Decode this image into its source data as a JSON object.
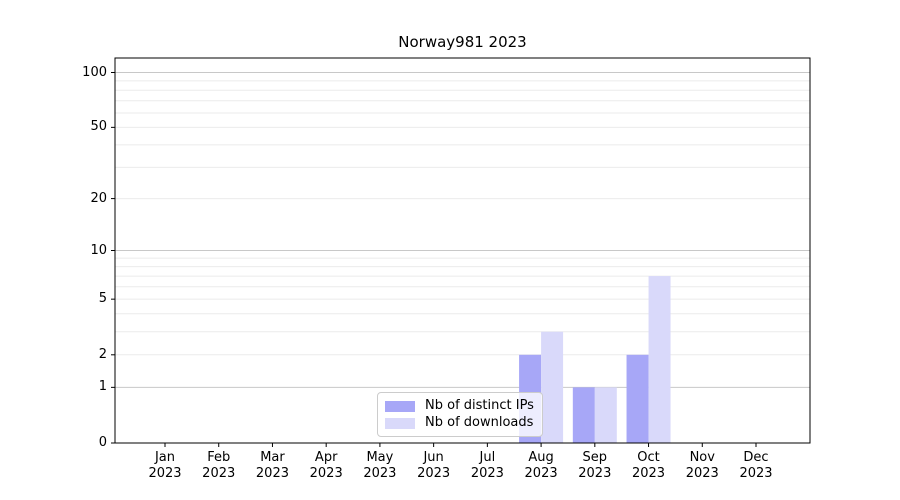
{
  "chart_data": {
    "type": "bar",
    "title": "Norway981 2023",
    "categories": [
      "Jan",
      "Feb",
      "Mar",
      "Apr",
      "May",
      "Jun",
      "Jul",
      "Aug",
      "Sep",
      "Oct",
      "Nov",
      "Dec"
    ],
    "year": "2023",
    "series": [
      {
        "name": "Nb of distinct IPs",
        "color": "#a7a7f7",
        "values": [
          0,
          0,
          0,
          0,
          0,
          0,
          0,
          2,
          1,
          2,
          0,
          0
        ]
      },
      {
        "name": "Nb of downloads",
        "color": "#d9d9fa",
        "values": [
          0,
          0,
          0,
          0,
          0,
          0,
          0,
          3,
          1,
          7,
          0,
          0
        ]
      }
    ],
    "xlabel": "",
    "ylabel": "",
    "yscale": "log1p",
    "ylim": [
      0,
      120
    ],
    "y_ticks": [
      0,
      1,
      2,
      5,
      10,
      20,
      50,
      100
    ],
    "grid": {
      "major": [
        1,
        10,
        100
      ],
      "minor": [
        2,
        3,
        4,
        5,
        6,
        7,
        8,
        9,
        20,
        30,
        40,
        50,
        60,
        70,
        80,
        90
      ],
      "major_color": "#c8c8c8",
      "minor_color": "#ebebeb"
    },
    "legend_position": "lower center",
    "axis_color": "#000000",
    "background": "#ffffff"
  }
}
